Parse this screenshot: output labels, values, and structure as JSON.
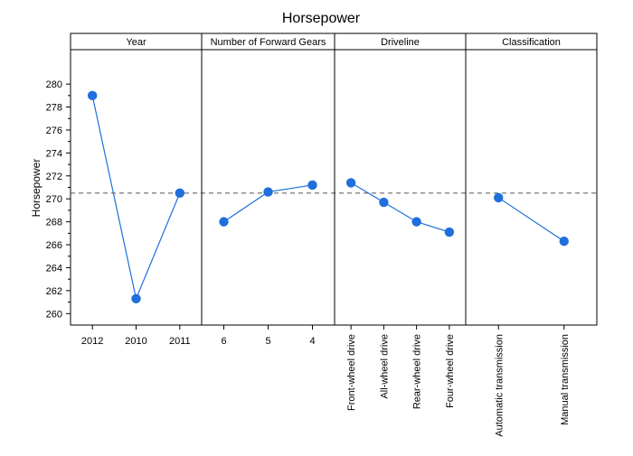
{
  "chart_data": {
    "type": "line",
    "title": "Horsepower",
    "ylabel": "Horsepower",
    "ylim": [
      259,
      283
    ],
    "yticks": [
      260,
      262,
      264,
      266,
      268,
      270,
      272,
      274,
      276,
      278,
      280
    ],
    "reference_line": 270.5,
    "colors": {
      "series": "#1f6fdc",
      "reference": "#555555"
    },
    "panels": [
      {
        "name": "Year",
        "categories": [
          "2012",
          "2010",
          "2011"
        ],
        "values": [
          279.0,
          261.3,
          270.5
        ],
        "rotate_labels": false
      },
      {
        "name": "Number of Forward Gears",
        "categories": [
          "6",
          "5",
          "4"
        ],
        "values": [
          268.0,
          270.6,
          271.2
        ],
        "rotate_labels": false
      },
      {
        "name": "Driveline",
        "categories": [
          "Front-wheel drive",
          "All-wheel drive",
          "Rear-wheel drive",
          "Four-wheel drive"
        ],
        "values": [
          271.4,
          269.7,
          268.0,
          267.1
        ],
        "rotate_labels": true
      },
      {
        "name": "Classification",
        "categories": [
          "Automatic transmission",
          "Manual transmission"
        ],
        "values": [
          270.1,
          266.3
        ],
        "rotate_labels": true
      }
    ]
  }
}
